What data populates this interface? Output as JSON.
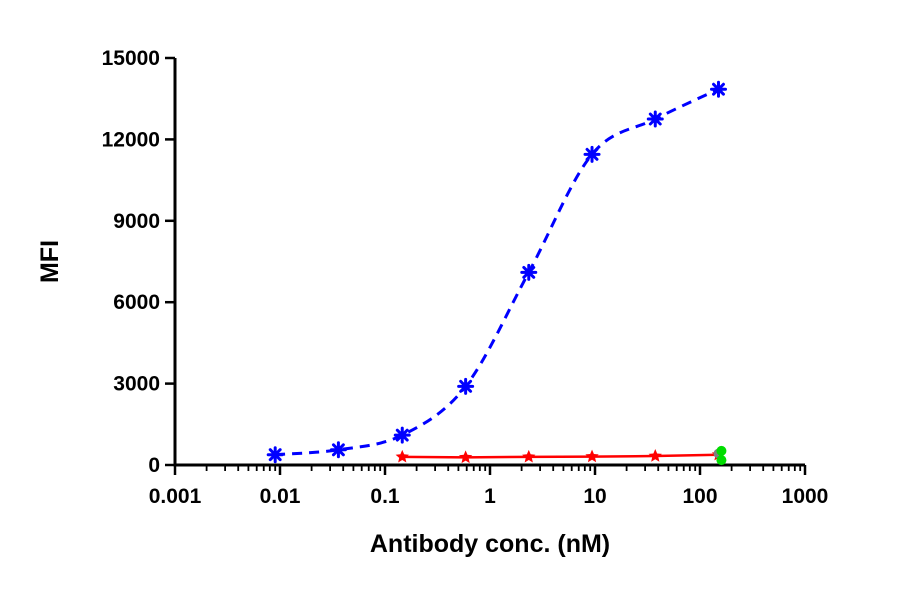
{
  "chart_data": {
    "type": "scatter",
    "title": "",
    "xlabel": "Antibody conc. (nM)",
    "ylabel": "MFI",
    "x_scale": "log",
    "xlim": [
      0.001,
      1000
    ],
    "ylim": [
      0,
      15000
    ],
    "x_ticks": [
      "0.001",
      "0.01",
      "0.1",
      "1",
      "10",
      "100",
      "1000"
    ],
    "y_ticks": [
      "0",
      "3000",
      "6000",
      "9000",
      "12000",
      "15000"
    ],
    "grid": false,
    "legend": "none",
    "series": [
      {
        "color": "#0000ff",
        "marker": "asterisk",
        "line": "dashed-fit",
        "x": [
          0.009,
          0.036,
          0.146,
          0.586,
          2.34,
          9.37,
          37.5,
          150
        ],
        "y": [
          380,
          560,
          1100,
          2900,
          7100,
          11450,
          12750,
          13850
        ]
      },
      {
        "color": "#ff0000",
        "marker": "star",
        "line": "solid",
        "x": [
          0.146,
          0.586,
          2.34,
          9.37,
          37.5,
          150
        ],
        "y": [
          300,
          280,
          300,
          310,
          330,
          380
        ]
      },
      {
        "color": "#808080",
        "marker": "circle",
        "line": "none",
        "x": [
          150
        ],
        "y": [
          420
        ]
      },
      {
        "color": "#00dd00",
        "marker": "circle",
        "line": "none",
        "x": [
          160,
          160
        ],
        "y": [
          520,
          180
        ]
      }
    ]
  }
}
